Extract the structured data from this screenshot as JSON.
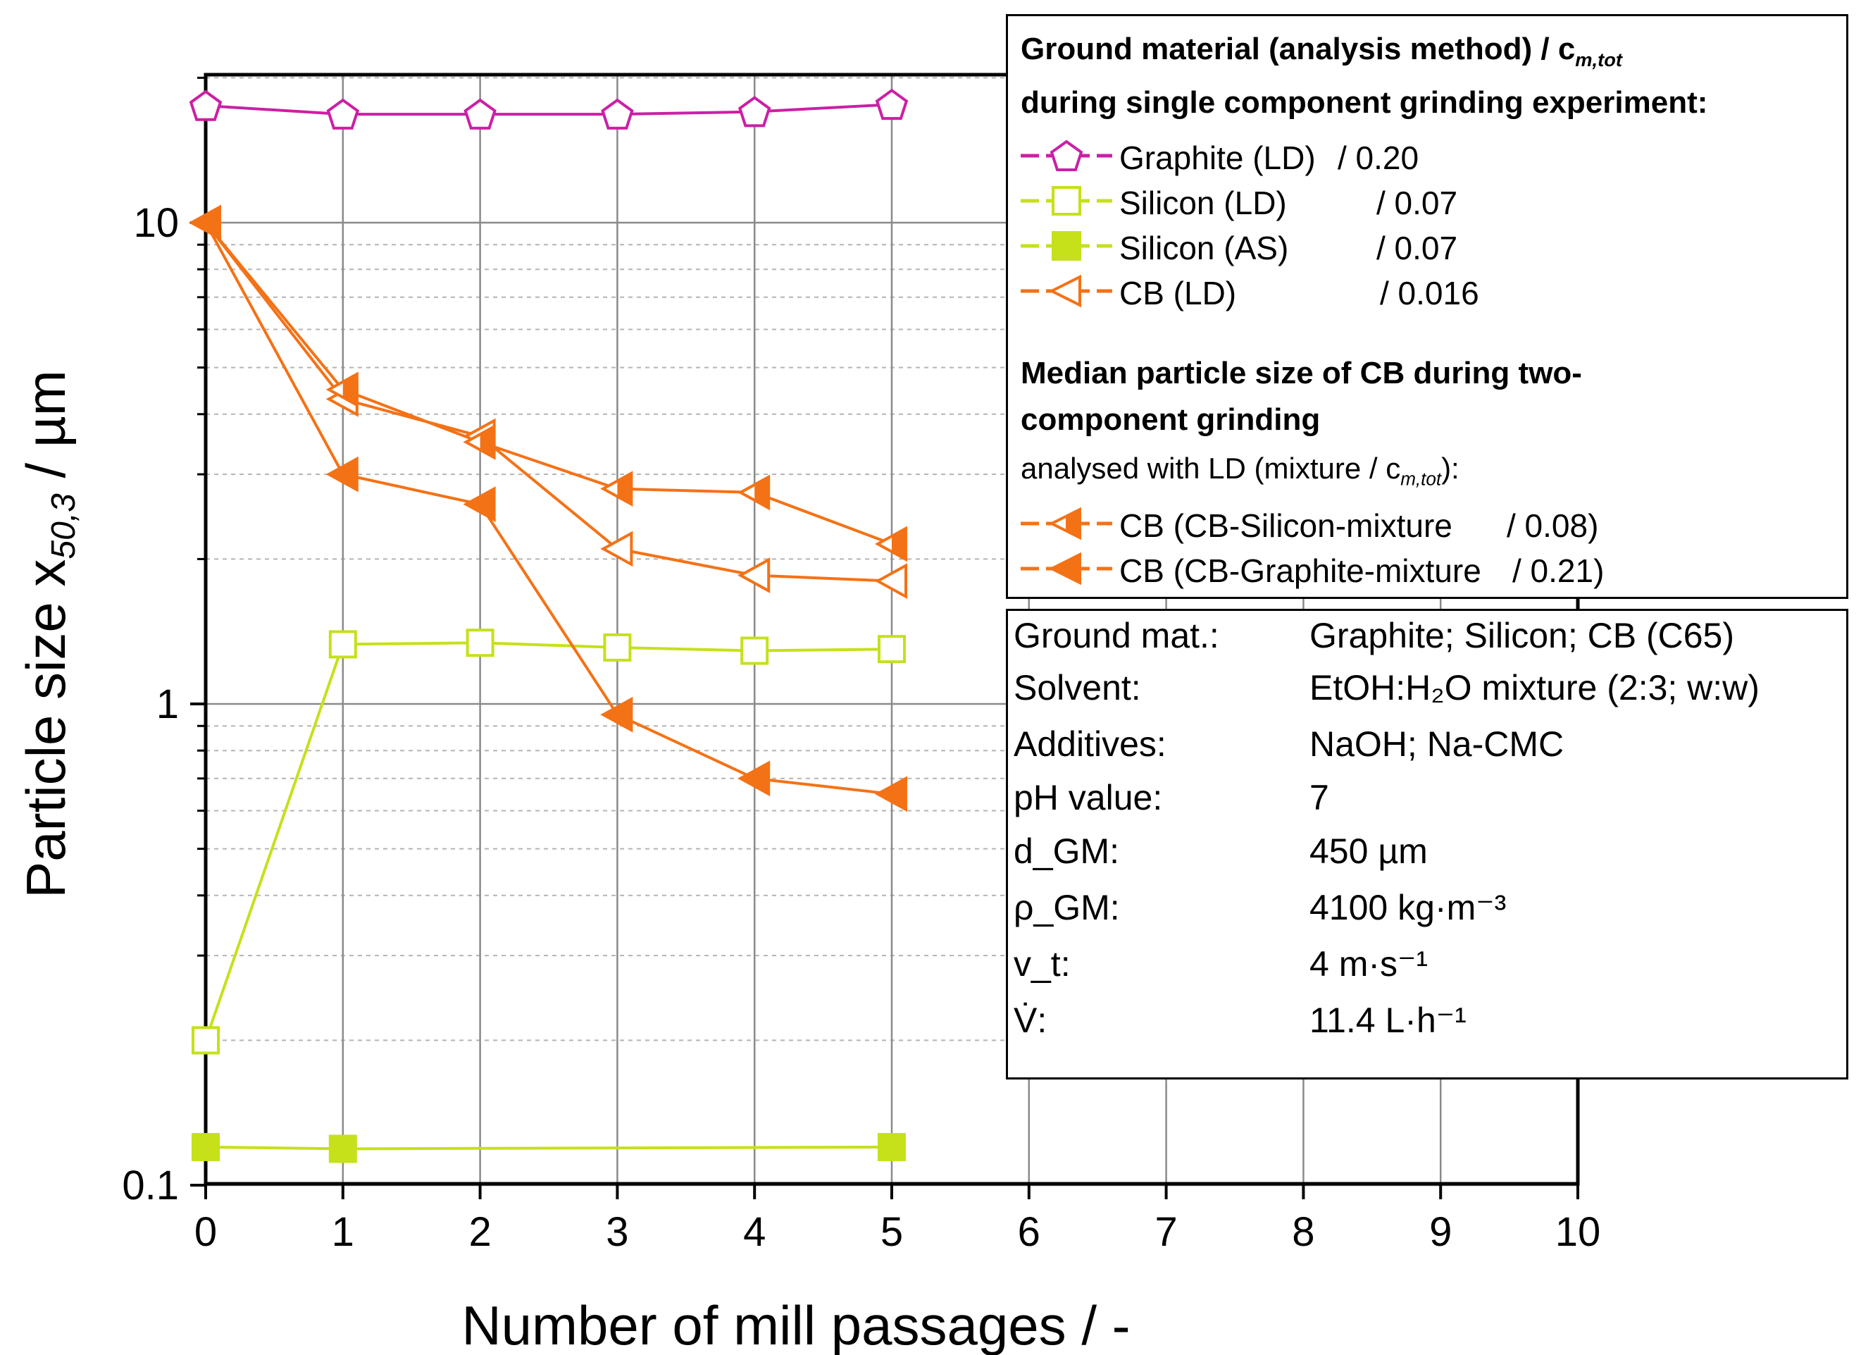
{
  "chart_data": {
    "type": "line",
    "xlabel": "Number of mill passages / -",
    "ylabel_main": "Particle size x",
    "ylabel_sub": "50,3",
    "ylabel_unit": " / µm",
    "xlim": [
      0,
      10
    ],
    "ylim": [
      0.1,
      20
    ],
    "yscale": "log",
    "grid": true,
    "x_ticks": [
      "0",
      "1",
      "2",
      "3",
      "4",
      "5",
      "6",
      "7",
      "8",
      "9",
      "10"
    ],
    "y_ticks": [
      {
        "value": 0.1,
        "label": "0.1"
      },
      {
        "value": 1,
        "label": "1"
      },
      {
        "value": 10,
        "label": "10"
      }
    ],
    "series": [
      {
        "name": "Graphite (LD)",
        "value": "/ 0.20",
        "color": "#cc1fa5",
        "marker": "pentagon-open",
        "x": [
          0,
          1,
          2,
          3,
          4,
          5
        ],
        "y": [
          17.5,
          16.8,
          16.8,
          16.8,
          17.0,
          17.6
        ]
      },
      {
        "name": "Silicon (LD)",
        "value": "/ 0.07",
        "color": "#c6e01a",
        "marker": "square-open",
        "x": [
          0,
          1,
          2,
          3,
          4,
          5
        ],
        "y": [
          0.2,
          1.33,
          1.34,
          1.31,
          1.29,
          1.3
        ]
      },
      {
        "name": "Silicon (AS)",
        "value": "/ 0.07",
        "color": "#c6e01a",
        "marker": "square-filled",
        "x": [
          0,
          1,
          5
        ],
        "y": [
          0.12,
          0.119,
          0.12
        ]
      },
      {
        "name": "CB (LD)",
        "value": "/ 0.016",
        "color": "#f47216",
        "marker": "triangle-left-open",
        "x": [
          0,
          1,
          2,
          3,
          4,
          5
        ],
        "y": [
          10.0,
          4.3,
          3.6,
          2.1,
          1.85,
          1.8
        ]
      },
      {
        "name": "CB (CB-Silicon-mixture",
        "value": "/ 0.08)",
        "color": "#f47216",
        "marker": "triangle-left-half",
        "x": [
          0,
          1,
          2,
          3,
          4,
          5
        ],
        "y": [
          10.0,
          4.5,
          3.5,
          2.8,
          2.75,
          2.15
        ]
      },
      {
        "name": "CB (CB-Graphite-mixture",
        "value": "/ 0.21)",
        "color": "#f47216",
        "marker": "triangle-left-filled",
        "x": [
          0,
          1,
          2,
          3,
          4,
          5
        ],
        "y": [
          10.0,
          3.0,
          2.6,
          0.95,
          0.7,
          0.65
        ]
      }
    ],
    "legend": {
      "title_line1": "Ground material (analysis method) / c",
      "title_line1_sub": "m,tot",
      "title_line2": "during single component grinding experiment:",
      "section2_title_line1": "Median particle size of CB during two-",
      "section2_title_line2": "component grinding",
      "section2_note": "analysed with LD (mixture / c",
      "section2_note_sub": "m,tot",
      "section2_note_end": "):"
    }
  },
  "info": {
    "rows": [
      {
        "label": "Ground mat.:",
        "value": "Graphite; Silicon; CB (C65)"
      },
      {
        "label": "Solvent:",
        "value": "EtOH:H₂O mixture (2:3; w:w)"
      },
      {
        "label": "Additives:",
        "value": "NaOH; Na-CMC"
      },
      {
        "label": "pH value:",
        "value": "7"
      },
      {
        "label": "d_GM:",
        "value": "450 µm"
      },
      {
        "label": "ρ_GM:",
        "value": "4100 kg·m⁻³"
      },
      {
        "label": "v_t:",
        "value": "4 m·s⁻¹"
      },
      {
        "label": "V̇:",
        "value": "11.4 L·h⁻¹"
      }
    ]
  }
}
